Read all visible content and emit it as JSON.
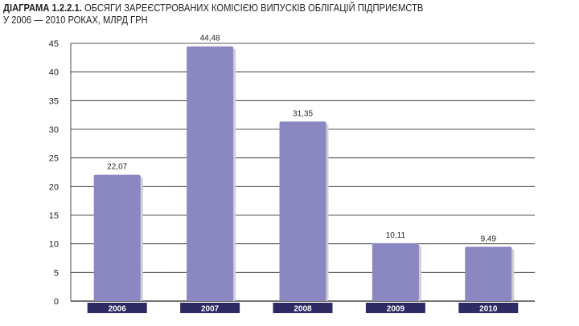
{
  "title": {
    "prefix": "ДІАГРАМА 1.2.2.1.",
    "line1": "ОБСЯГИ ЗАРЕЄСТРОВАНИХ КОМІСІЄЮ ВИПУСКІВ ОБЛІГАЦІЙ ПІДПРИЄМСТВ",
    "line2": "У 2006 — 2010 РОКАХ, МЛРД ГРН"
  },
  "colors": {
    "bar": "#8b87c1",
    "bar_shadow": "#cfcfd6",
    "category_band": "#2e2a63",
    "grid": "#231f20"
  },
  "chart_data": {
    "type": "bar",
    "categories": [
      "2006",
      "2007",
      "2008",
      "2009",
      "2010"
    ],
    "values": [
      22.07,
      44.48,
      31.35,
      10.11,
      9.49
    ],
    "value_labels": [
      "22,07",
      "44,48",
      "31,35",
      "10,11",
      "9,49"
    ],
    "ylim": [
      0,
      45
    ],
    "yticks": [
      0,
      5,
      10,
      15,
      20,
      25,
      30,
      35,
      40,
      45
    ],
    "grid": true,
    "xlabel": "",
    "ylabel": ""
  }
}
